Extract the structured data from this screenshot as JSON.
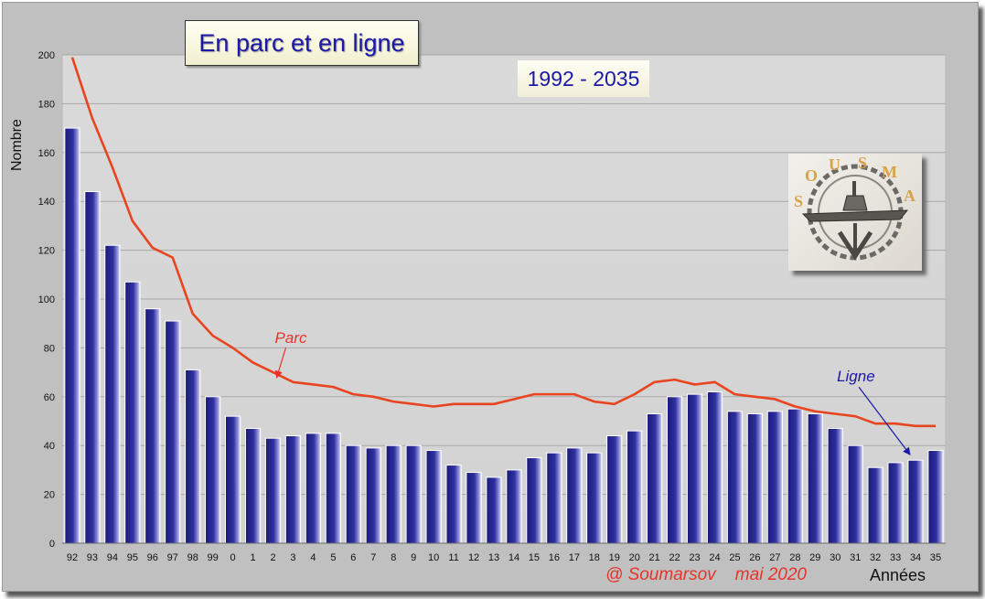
{
  "title": "En parc et en ligne",
  "period": "1992 - 2035",
  "credit_author": "@ Soumarsov",
  "credit_date": "mai 2020",
  "badge": {
    "icon": "submarine-insignia-icon"
  },
  "colors": {
    "bar_fill": "#2a2a8c",
    "line": "#e8441f",
    "plot_bg": "#d6d6d6",
    "frame_bg": "#c0c0c0",
    "title_text": "#1b18a6",
    "annotation_parc": "#e8332b",
    "annotation_ligne": "#1b18a6"
  },
  "chart_data": {
    "type": "bar",
    "title": "En parc et en ligne",
    "subtitle": "1992 - 2035",
    "xlabel": "Années",
    "ylabel": "Nombre",
    "ylim": [
      0,
      200
    ],
    "yticks": [
      0,
      20,
      40,
      60,
      80,
      100,
      120,
      140,
      160,
      180,
      200
    ],
    "grid": true,
    "categories": [
      "92",
      "93",
      "94",
      "95",
      "96",
      "97",
      "98",
      "99",
      "0",
      "1",
      "2",
      "3",
      "4",
      "5",
      "6",
      "7",
      "8",
      "9",
      "10",
      "11",
      "12",
      "13",
      "14",
      "15",
      "16",
      "17",
      "18",
      "19",
      "20",
      "21",
      "22",
      "23",
      "24",
      "25",
      "26",
      "27",
      "28",
      "29",
      "30",
      "31",
      "32",
      "33",
      "34",
      "35"
    ],
    "series": [
      {
        "name": "Ligne",
        "type": "bar",
        "values": [
          170,
          144,
          122,
          107,
          96,
          91,
          71,
          60,
          52,
          47,
          43,
          44,
          45,
          45,
          40,
          39,
          40,
          40,
          38,
          32,
          29,
          27,
          30,
          35,
          37,
          39,
          37,
          44,
          46,
          53,
          60,
          61,
          62,
          54,
          53,
          54,
          55,
          53,
          47,
          40,
          31,
          33,
          34,
          38
        ]
      },
      {
        "name": "Parc",
        "type": "line",
        "values": [
          199,
          174,
          154,
          132,
          121,
          117,
          94,
          85,
          80,
          74,
          70,
          66,
          65,
          64,
          61,
          60,
          58,
          57,
          56,
          57,
          57,
          57,
          59,
          61,
          61,
          61,
          58,
          57,
          61,
          66,
          67,
          65,
          66,
          61,
          60,
          59,
          56,
          54,
          53,
          52,
          49,
          49,
          48,
          48
        ]
      }
    ],
    "annotations": [
      {
        "text": "Parc",
        "series": "Parc",
        "category": "2"
      },
      {
        "text": "Ligne",
        "series": "Ligne",
        "category": "34"
      }
    ]
  }
}
